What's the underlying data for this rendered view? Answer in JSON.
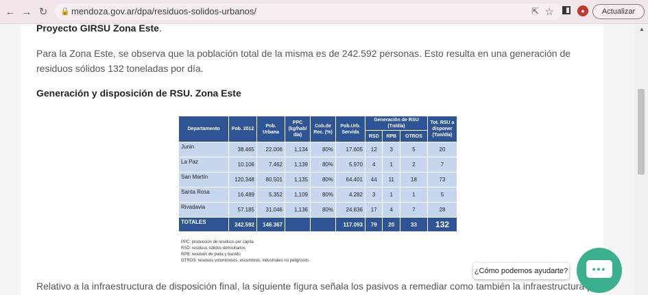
{
  "browser": {
    "url": "mendoza.gov.ar/dpa/residuos-solidos-urbanos/",
    "update_label": "Actualizar"
  },
  "article": {
    "heading_project": "Proyecto GIRSU Zona Este",
    "heading_project_suffix": ".",
    "paragraph": "Para la Zona Este, se observa que la población total de la misma es de 242.592 personas. Esto resulta en una generación de residuos sólidos 132 toneladas por día.",
    "heading_generation": "Generación y disposición de RSU. Zona Este",
    "paragraph_bottom": "Relativo a la infraestructura de disposición final, la siguiente figura señala los pasivos a remediar como también la infraestructura proyectada"
  },
  "table": {
    "headers": {
      "departamento": "Departamento",
      "pob2012": "Pob. 2012",
      "pob_urbana": "Pob. Urbana",
      "ppc": "PPC (kg/hab/ día)",
      "cob_rec": "Cob.de Rec. (%)",
      "pob_urb_servida": "Pob.Urb. Servida",
      "generacion": "Generación de RSU (Tn/día)",
      "rsd": "RSD",
      "rpb": "RPB",
      "otros": "OTROS",
      "tot": "Tot. RSU a disponer (Ton/día)"
    },
    "rows": [
      {
        "dep": "Junin",
        "pob2012": "38.465",
        "pob_urbana": "22.006",
        "ppc": "1,134",
        "cob": "80%",
        "servida": "17.605",
        "rsd": "12",
        "rpb": "3",
        "otros": "5",
        "tot": "20"
      },
      {
        "dep": "La Paz",
        "pob2012": "10.106",
        "pob_urbana": "7.462",
        "ppc": "1,139",
        "cob": "80%",
        "servida": "5.970",
        "rsd": "4",
        "rpb": "1",
        "otros": "2",
        "tot": "7"
      },
      {
        "dep": "San Martín",
        "pob2012": "120.348",
        "pob_urbana": "80.501",
        "ppc": "1,135",
        "cob": "80%",
        "servida": "64.401",
        "rsd": "44",
        "rpb": "11",
        "otros": "18",
        "tot": "73"
      },
      {
        "dep": "Santa Rosa",
        "pob2012": "16.489",
        "pob_urbana": "5.352",
        "ppc": "1,109",
        "cob": "80%",
        "servida": "4.282",
        "rsd": "3",
        "rpb": "1",
        "otros": "1",
        "tot": "5"
      },
      {
        "dep": "Rivadavia",
        "pob2012": "57.185",
        "pob_urbana": "31.046",
        "ppc": "1,136",
        "cob": "80%",
        "servida": "24.836",
        "rsd": "17",
        "rpb": "4",
        "otros": "7",
        "tot": "28"
      }
    ],
    "totals": {
      "label": "TOTALES",
      "pob2012": "242.592",
      "pob_urbana": "146.367",
      "servida": "117.093",
      "rsd": "79",
      "rpb": "20",
      "otros": "33",
      "tot": "132"
    },
    "notes": [
      "PPC: producción de residuos per cápita",
      "RSD: residuos sólidos domiciliarios",
      "RPB: residuos de poda y barrido",
      "OTROS: residuos voluminosos, escombros, industriales no peligrosos."
    ]
  },
  "chat": {
    "bubble_text": "¿Cómo podemos ayudarte?",
    "color": "#3ab08e"
  }
}
